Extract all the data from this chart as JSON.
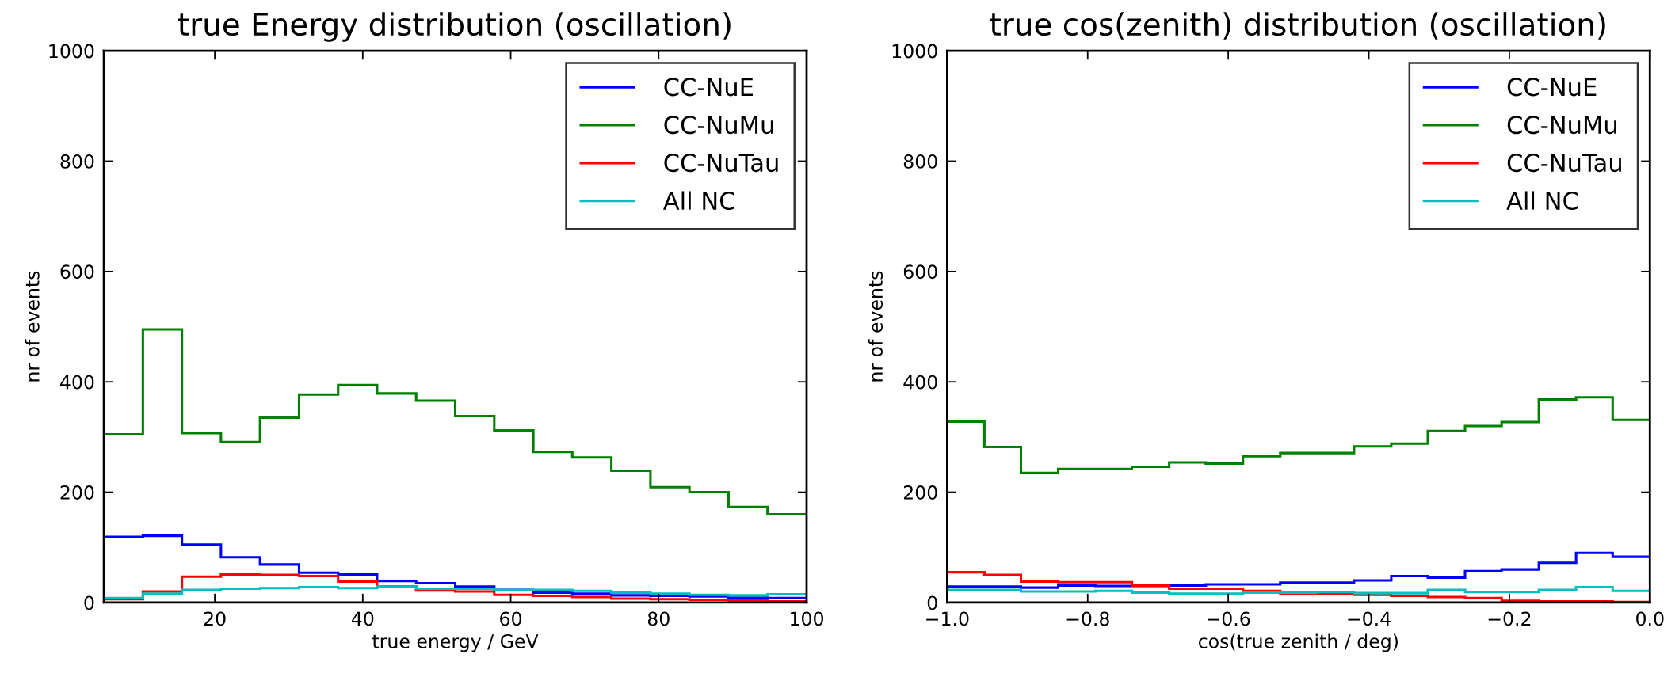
{
  "chart_data": [
    {
      "type": "histogram",
      "title": "true Energy distribution (oscillation)",
      "xlabel": "true energy / GeV",
      "ylabel": "nr of events",
      "bins": [
        5,
        10.28,
        15.56,
        20.83,
        26.11,
        31.39,
        36.67,
        41.94,
        47.22,
        52.5,
        57.78,
        63.06,
        68.33,
        73.61,
        78.89,
        84.17,
        89.44,
        94.72,
        100
      ],
      "series": [
        {
          "name": "CC-NuE",
          "color": "#0000ff",
          "values": [
            119,
            121,
            105,
            82,
            69,
            54,
            51,
            39,
            35,
            29,
            23,
            18,
            16,
            13,
            12,
            11,
            9,
            8
          ]
        },
        {
          "name": "CC-NuMu",
          "color": "#008000",
          "values": [
            305,
            495,
            307,
            291,
            335,
            377,
            394,
            379,
            366,
            338,
            312,
            273,
            263,
            239,
            209,
            200,
            173,
            160
          ]
        },
        {
          "name": "CC-NuTau",
          "color": "#ff0000",
          "values": [
            6,
            20,
            47,
            51,
            50,
            48,
            38,
            29,
            22,
            20,
            14,
            12,
            10,
            7,
            6,
            5,
            4,
            2
          ]
        },
        {
          "name": "All NC",
          "color": "#00bfbf",
          "values": [
            8,
            16,
            23,
            25,
            26,
            28,
            26,
            29,
            25,
            25,
            23,
            23,
            21,
            18,
            16,
            14,
            13,
            15
          ]
        }
      ],
      "xlim": [
        5,
        100
      ],
      "xticks": [
        20,
        40,
        60,
        80,
        100
      ],
      "ylim": [
        0,
        1000
      ],
      "yticks": [
        0,
        200,
        400,
        600,
        800,
        1000
      ],
      "legend": "top right",
      "grid": false
    },
    {
      "type": "histogram",
      "title": "true cos(zenith) distribution (oscillation)",
      "xlabel": "cos(true zenith / deg)",
      "ylabel": "nr of events",
      "bins": [
        -1.0,
        -0.947,
        -0.895,
        -0.842,
        -0.789,
        -0.737,
        -0.684,
        -0.632,
        -0.579,
        -0.526,
        -0.474,
        -0.421,
        -0.368,
        -0.316,
        -0.263,
        -0.211,
        -0.158,
        -0.105,
        -0.053,
        0.0
      ],
      "series": [
        {
          "name": "CC-NuE",
          "color": "#0000ff",
          "values": [
            29,
            29,
            27,
            31,
            30,
            30,
            31,
            33,
            33,
            36,
            36,
            40,
            48,
            45,
            57,
            60,
            72,
            90,
            83
          ]
        },
        {
          "name": "CC-NuMu",
          "color": "#008000",
          "values": [
            328,
            282,
            235,
            242,
            242,
            246,
            254,
            252,
            265,
            271,
            271,
            283,
            288,
            311,
            320,
            327,
            368,
            372,
            331
          ]
        },
        {
          "name": "CC-NuTau",
          "color": "#ff0000",
          "values": [
            55,
            50,
            38,
            37,
            37,
            31,
            25,
            25,
            21,
            16,
            15,
            14,
            12,
            10,
            8,
            3,
            2,
            2,
            1
          ]
        },
        {
          "name": "All NC",
          "color": "#00bfbf",
          "values": [
            23,
            23,
            20,
            20,
            21,
            18,
            16,
            16,
            18,
            18,
            19,
            17,
            17,
            23,
            19,
            19,
            23,
            28,
            21
          ]
        }
      ],
      "xlim": [
        -1.0,
        0.0
      ],
      "xticks": [
        {
          "value": -1.0,
          "label": "−1.0"
        },
        {
          "value": -0.8,
          "label": "−0.8"
        },
        {
          "value": -0.6,
          "label": "−0.6"
        },
        {
          "value": -0.4,
          "label": "−0.4"
        },
        {
          "value": -0.2,
          "label": "−0.2"
        },
        {
          "value": 0.0,
          "label": "0.0"
        }
      ],
      "ylim": [
        0,
        1000
      ],
      "yticks": [
        0,
        200,
        400,
        600,
        800,
        1000
      ],
      "legend": "top right",
      "grid": false
    }
  ]
}
